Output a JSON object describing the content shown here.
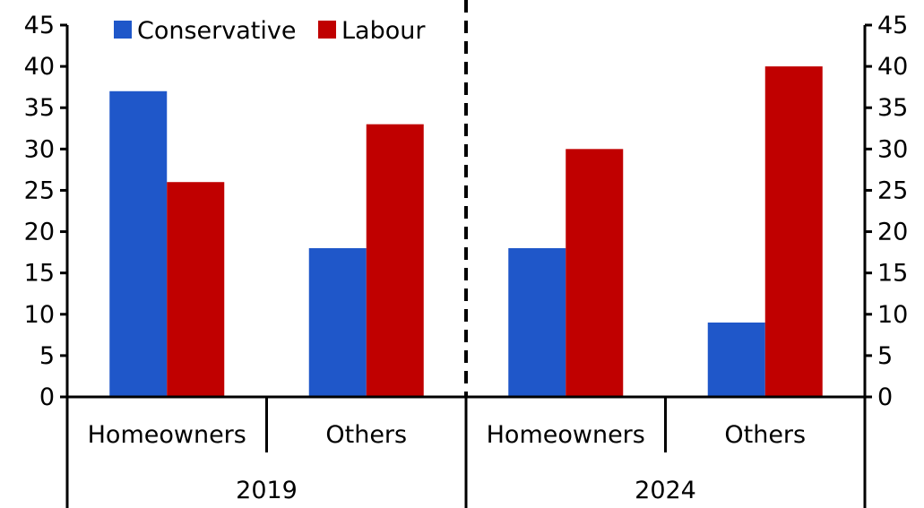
{
  "chart_data": {
    "type": "bar",
    "colors": {
      "Conservative": "#1f57c9",
      "Labour": "#c00000"
    },
    "groups": [
      {
        "year": "2019",
        "categories": [
          "Homeowners",
          "Others"
        ]
      },
      {
        "year": "2024",
        "categories": [
          "Homeowners",
          "Others"
        ]
      }
    ],
    "series": [
      {
        "name": "Conservative",
        "values": [
          37,
          18,
          18,
          9
        ]
      },
      {
        "name": "Labour",
        "values": [
          26,
          33,
          30,
          40
        ]
      }
    ],
    "ylim": [
      0,
      45
    ],
    "yticks": [
      0,
      5,
      10,
      15,
      20,
      25,
      30,
      35,
      40,
      45
    ],
    "legend": {
      "position": "top-left",
      "entries": [
        "Conservative",
        "Labour"
      ]
    },
    "grid": false
  }
}
